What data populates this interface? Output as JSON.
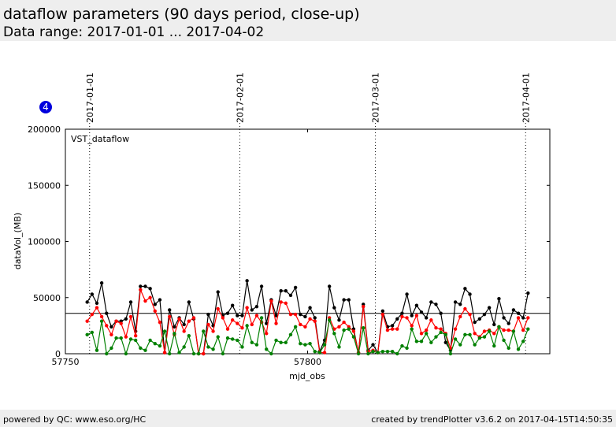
{
  "header": {
    "title": "dataflow parameters (90 days period, close-up)",
    "subtitle": "Data range: 2017-01-01 ... 2017-04-02"
  },
  "badge": "4",
  "footer": {
    "left": "powered by QC: www.eso.org/HC",
    "right": "created by trendPlotter v3.6.2 on 2017-04-15T14:50:35"
  },
  "chart_data": {
    "type": "line",
    "annotation": "VST_dataflow",
    "ylabel": "dataVol_(MB)",
    "xlabel": "mjd_obs",
    "xlim": [
      57750,
      57850
    ],
    "xticks": [
      57750,
      57800
    ],
    "ylim": [
      0,
      200000
    ],
    "yticks": [
      0,
      50000,
      100000,
      150000,
      200000
    ],
    "reference_line": 36000,
    "date_markers": [
      {
        "value": 57755,
        "label": "2017-01-01"
      },
      {
        "value": 57786,
        "label": "2017-02-01"
      },
      {
        "value": 57814,
        "label": "2017-03-01"
      },
      {
        "value": 57845,
        "label": "2017-04-01"
      }
    ],
    "x": [
      57754.5,
      57755.5,
      57756.5,
      57757.5,
      57758.5,
      57759.5,
      57760.5,
      57761.5,
      57762.5,
      57763.5,
      57764.5,
      57765.5,
      57766.5,
      57767.5,
      57768.5,
      57769.5,
      57770.5,
      57771.5,
      57772.5,
      57773.5,
      57774.5,
      57775.5,
      57776.5,
      57777.5,
      57778.5,
      57779.5,
      57780.5,
      57781.5,
      57782.5,
      57783.5,
      57784.5,
      57785.5,
      57786.5,
      57787.5,
      57788.5,
      57789.5,
      57790.5,
      57791.5,
      57792.5,
      57793.5,
      57794.5,
      57795.5,
      57796.5,
      57797.5,
      57798.5,
      57799.5,
      57800.5,
      57801.5,
      57802.5,
      57803.5,
      57804.5,
      57805.5,
      57806.5,
      57807.5,
      57808.5,
      57809.5,
      57810.5,
      57811.5,
      57812.5,
      57813.5,
      57814.5,
      57815.5,
      57816.5,
      57817.5,
      57818.5,
      57819.5,
      57820.5,
      57821.5,
      57822.5,
      57823.5,
      57824.5,
      57825.5,
      57826.5,
      57827.5,
      57828.5,
      57829.5,
      57830.5,
      57831.5,
      57832.5,
      57833.5,
      57834.5,
      57835.5,
      57836.5,
      57837.5,
      57838.5,
      57839.5,
      57840.5,
      57841.5,
      57842.5,
      57843.5,
      57844.5,
      57845.5
    ],
    "series": [
      {
        "color": "#000000",
        "values": [
          46000,
          53000,
          45000,
          63000,
          36000,
          24000,
          29000,
          29000,
          31000,
          46000,
          20000,
          60000,
          60000,
          58000,
          44000,
          48000,
          1000,
          39000,
          24000,
          32000,
          26000,
          46000,
          31000,
          0,
          0,
          35000,
          25000,
          55000,
          34000,
          36000,
          43000,
          34000,
          34000,
          65000,
          39000,
          42000,
          60000,
          27000,
          48000,
          34000,
          56000,
          56000,
          52000,
          59000,
          35000,
          33000,
          41000,
          32000,
          2000,
          12000,
          60000,
          41000,
          30000,
          48000,
          48000,
          22000,
          1000,
          44000,
          3000,
          8000,
          1000,
          38000,
          24000,
          25000,
          31000,
          36000,
          53000,
          34000,
          43000,
          37000,
          32000,
          46000,
          44000,
          36000,
          10000,
          3000,
          46000,
          44000,
          58000,
          53000,
          28000,
          31000,
          35000,
          41000,
          26000,
          49000,
          32000,
          27000,
          39000,
          36000,
          32000,
          54000
        ]
      },
      {
        "color": "#ff0000",
        "values": [
          29000,
          35000,
          41000,
          33000,
          25000,
          17000,
          29000,
          27000,
          15000,
          33000,
          16000,
          57000,
          47000,
          50000,
          38000,
          28000,
          1000,
          33000,
          17000,
          31000,
          20000,
          29000,
          32000,
          0,
          0,
          26000,
          20000,
          40000,
          32000,
          22000,
          30000,
          27000,
          23000,
          41000,
          26000,
          34000,
          28000,
          18000,
          47000,
          27000,
          46000,
          45000,
          35000,
          35000,
          26000,
          24000,
          31000,
          29000,
          1000,
          1000,
          32000,
          22000,
          24000,
          28000,
          24000,
          20000,
          1000,
          42000,
          2000,
          3000,
          1000,
          35000,
          21000,
          22000,
          22000,
          33000,
          32000,
          25000,
          34000,
          18000,
          21000,
          30000,
          23000,
          22000,
          18000,
          5000,
          22000,
          33000,
          40000,
          35000,
          18000,
          15000,
          20000,
          21000,
          18000,
          24000,
          21000,
          21000,
          20000,
          32000,
          21000,
          32000
        ]
      },
      {
        "color": "#008000",
        "values": [
          17000,
          19000,
          3000,
          29000,
          0,
          5000,
          14000,
          14000,
          0,
          13000,
          12000,
          5000,
          3000,
          12000,
          9000,
          7000,
          20000,
          0,
          18000,
          1000,
          6000,
          16000,
          0,
          0,
          20000,
          6000,
          4000,
          15000,
          0,
          14000,
          13000,
          12000,
          6000,
          25000,
          10000,
          8000,
          32000,
          4000,
          0,
          12000,
          10000,
          10000,
          17000,
          24000,
          9000,
          8000,
          9000,
          2000,
          1000,
          8000,
          30000,
          18000,
          6000,
          21000,
          22000,
          15000,
          0,
          23000,
          0,
          2000,
          1000,
          2000,
          2000,
          2000,
          0,
          7000,
          5000,
          22000,
          11000,
          11000,
          18000,
          10000,
          15000,
          19000,
          17000,
          0,
          13000,
          8000,
          17000,
          17000,
          8000,
          14000,
          15000,
          20000,
          7000,
          24000,
          12000,
          5000,
          20000,
          4000,
          11000,
          22000
        ]
      }
    ]
  }
}
